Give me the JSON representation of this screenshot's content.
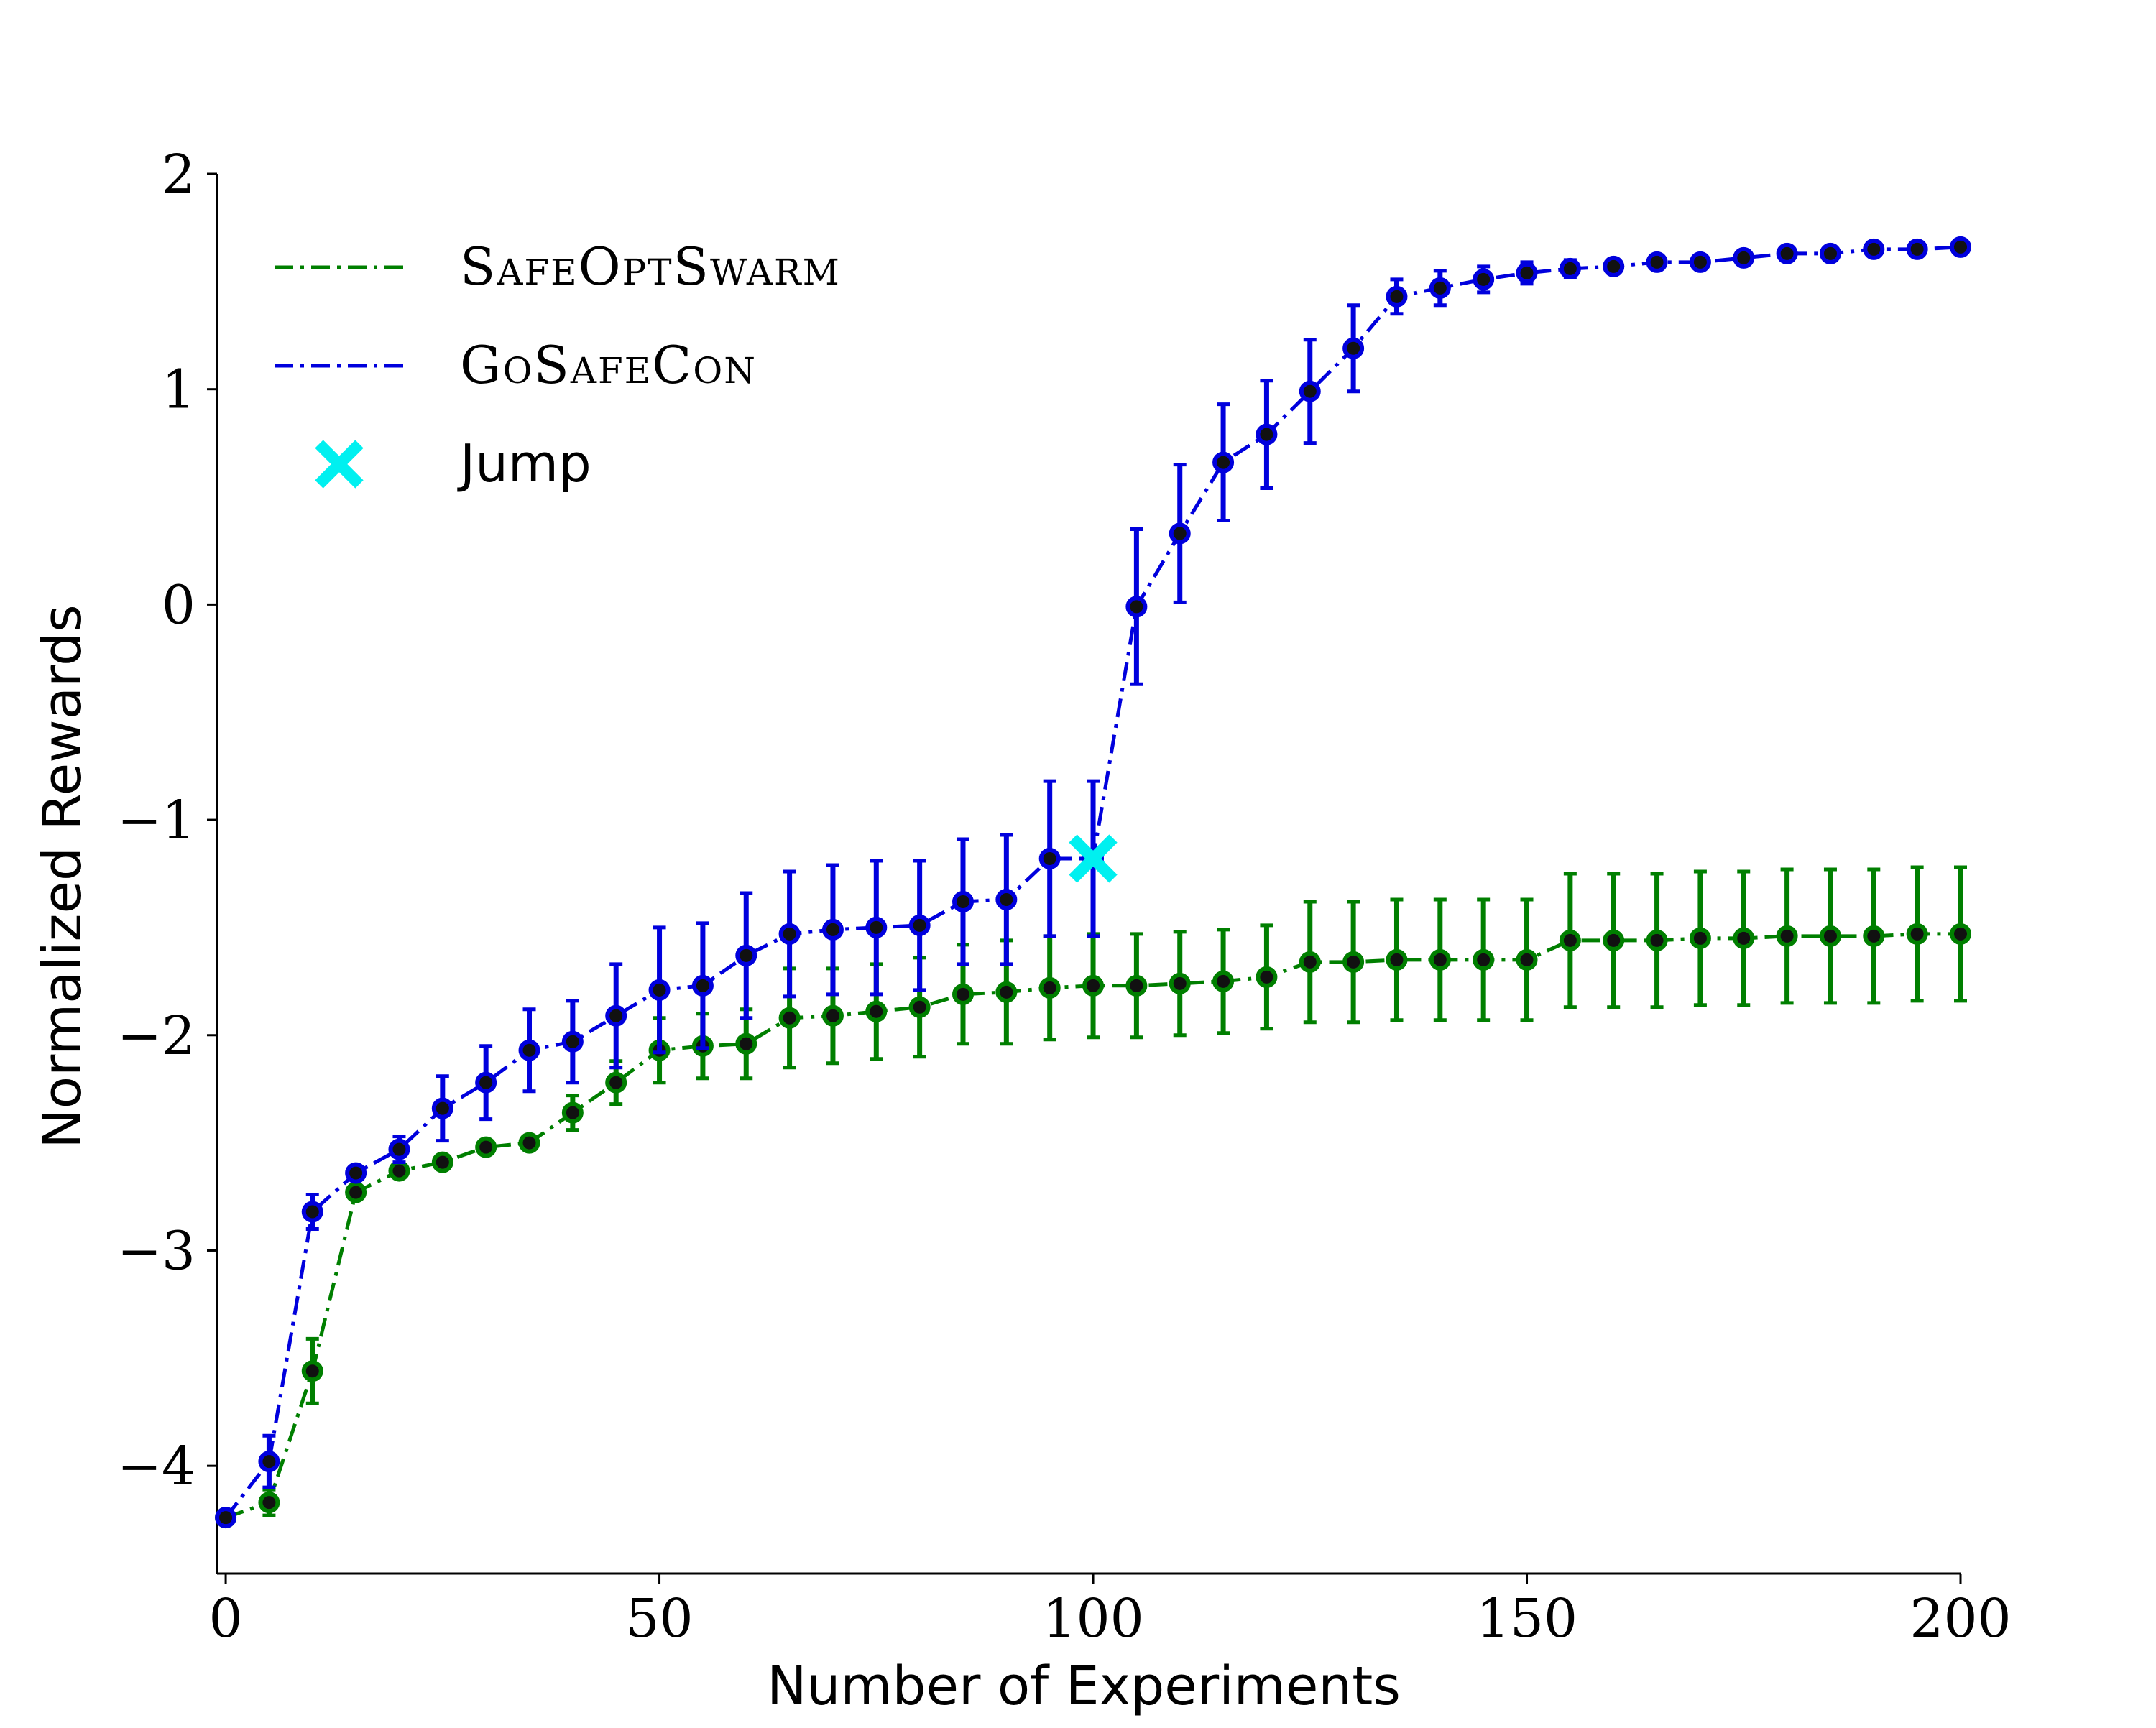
{
  "chart_data": {
    "type": "line",
    "xlabel": "Number of Experiments",
    "ylabel": "Normalized Rewards",
    "xlim": [
      -1,
      200
    ],
    "ylim": [
      -4.5,
      2
    ],
    "x_ticks": [
      0,
      50,
      100,
      150,
      200
    ],
    "x_tick_labels": [
      "0",
      "50",
      "100",
      "150",
      "200"
    ],
    "y_ticks": [
      -4,
      -3,
      -2,
      -1,
      0,
      1,
      2
    ],
    "y_tick_labels": [
      "−4",
      "−3",
      "−2",
      "−1",
      "0",
      "1",
      "2"
    ],
    "legend_placement": "top-left",
    "x": [
      0,
      5,
      10,
      15,
      20,
      25,
      30,
      35,
      40,
      45,
      50,
      55,
      60,
      65,
      70,
      75,
      80,
      85,
      90,
      95,
      100,
      105,
      110,
      115,
      120,
      125,
      130,
      135,
      140,
      145,
      150,
      155,
      160,
      165,
      170,
      175,
      180,
      185,
      190,
      195,
      200
    ],
    "series": [
      {
        "name": "SafeOptSwarm",
        "color": "#007f00",
        "line_style": "dash-dot",
        "values": [
          -4.24,
          -4.17,
          -3.56,
          -2.73,
          -2.63,
          -2.59,
          -2.52,
          -2.5,
          -2.36,
          -2.22,
          -2.07,
          -2.05,
          -2.04,
          -1.92,
          -1.91,
          -1.89,
          -1.87,
          -1.81,
          -1.8,
          -1.78,
          -1.77,
          -1.77,
          -1.76,
          -1.75,
          -1.73,
          -1.66,
          -1.66,
          -1.65,
          -1.65,
          -1.65,
          -1.65,
          -1.56,
          -1.56,
          -1.56,
          -1.55,
          -1.55,
          -1.54,
          -1.54,
          -1.54,
          -1.53,
          -1.53
        ],
        "errors": [
          0.01,
          0.06,
          0.15,
          0.02,
          0.02,
          0.02,
          0.02,
          0.02,
          0.08,
          0.1,
          0.15,
          0.15,
          0.16,
          0.23,
          0.22,
          0.22,
          0.23,
          0.23,
          0.24,
          0.24,
          0.24,
          0.24,
          0.24,
          0.24,
          0.24,
          0.28,
          0.28,
          0.28,
          0.28,
          0.28,
          0.28,
          0.31,
          0.31,
          0.31,
          0.31,
          0.31,
          0.31,
          0.31,
          0.31,
          0.31,
          0.31
        ]
      },
      {
        "name": "GoSafeCon",
        "color": "#0000dd",
        "line_style": "dash-dot",
        "values": [
          -4.24,
          -3.98,
          -2.82,
          -2.64,
          -2.53,
          -2.34,
          -2.22,
          -2.07,
          -2.03,
          -1.91,
          -1.79,
          -1.77,
          -1.63,
          -1.53,
          -1.51,
          -1.5,
          -1.49,
          -1.38,
          -1.37,
          -1.18,
          -1.18,
          -0.01,
          0.33,
          0.66,
          0.79,
          0.99,
          1.19,
          1.43,
          1.47,
          1.51,
          1.54,
          1.56,
          1.57,
          1.59,
          1.59,
          1.61,
          1.63,
          1.63,
          1.65,
          1.65,
          1.66
        ],
        "errors": [
          0.01,
          0.12,
          0.08,
          0.02,
          0.06,
          0.15,
          0.17,
          0.19,
          0.19,
          0.24,
          0.29,
          0.29,
          0.29,
          0.29,
          0.3,
          0.31,
          0.3,
          0.29,
          0.3,
          0.36,
          0.36,
          0.36,
          0.32,
          0.27,
          0.25,
          0.24,
          0.2,
          0.08,
          0.08,
          0.06,
          0.05,
          0.04,
          0.03,
          0.03,
          0.03,
          0.03,
          0.02,
          0.02,
          0.02,
          0.02,
          0.02
        ]
      }
    ],
    "annotations": [
      {
        "name": "Jump",
        "type": "x-marker",
        "color": "#00f0f0",
        "x": 100,
        "y": -1.18
      }
    ],
    "legend": [
      {
        "label": "SafeOptSwarm",
        "display": "SafeOptSwarm",
        "color": "#007f00",
        "style": "dash-dot"
      },
      {
        "label": "GoSafeCon",
        "display": "GoSafeCon",
        "color": "#0000dd",
        "style": "dash-dot"
      },
      {
        "label": "Jump",
        "display": "Jump",
        "color": "#00f0f0",
        "style": "x-marker"
      }
    ]
  }
}
